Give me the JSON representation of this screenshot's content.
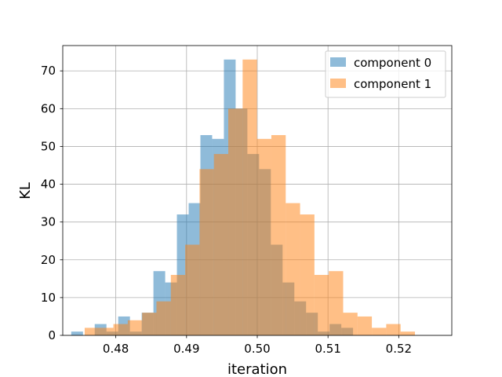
{
  "chart_data": {
    "type": "histogram",
    "xlabel": "iteration",
    "ylabel": "KL",
    "xlim": [
      0.4725,
      0.5275
    ],
    "ylim": [
      0,
      76.7
    ],
    "xticks": [
      0.48,
      0.49,
      0.5,
      0.51,
      0.52
    ],
    "xtick_labels": [
      "0.48",
      "0.49",
      "0.50",
      "0.51",
      "0.52"
    ],
    "yticks": [
      0,
      10,
      20,
      30,
      40,
      50,
      60,
      70
    ],
    "ytick_labels": [
      "0",
      "10",
      "20",
      "30",
      "40",
      "50",
      "60",
      "70"
    ],
    "grid": true,
    "legend_position": "top-right",
    "series": [
      {
        "name": "component 0",
        "color": "#1f77b4",
        "opacity": 0.5,
        "bin_start": 0.4737,
        "bin_width": 0.00166,
        "counts": [
          1,
          0,
          3,
          1,
          5,
          1,
          6,
          17,
          14,
          32,
          35,
          53,
          52,
          73,
          60,
          48,
          44,
          24,
          14,
          9,
          6,
          1,
          3,
          2,
          0
        ]
      },
      {
        "name": "component 1",
        "color": "#ff7f0e",
        "opacity": 0.5,
        "bin_start": 0.4756,
        "bin_width": 0.00203,
        "counts": [
          2,
          2,
          3,
          4,
          6,
          9,
          16,
          24,
          44,
          48,
          60,
          73,
          52,
          53,
          35,
          32,
          16,
          17,
          6,
          5,
          2,
          3,
          1
        ]
      }
    ]
  }
}
